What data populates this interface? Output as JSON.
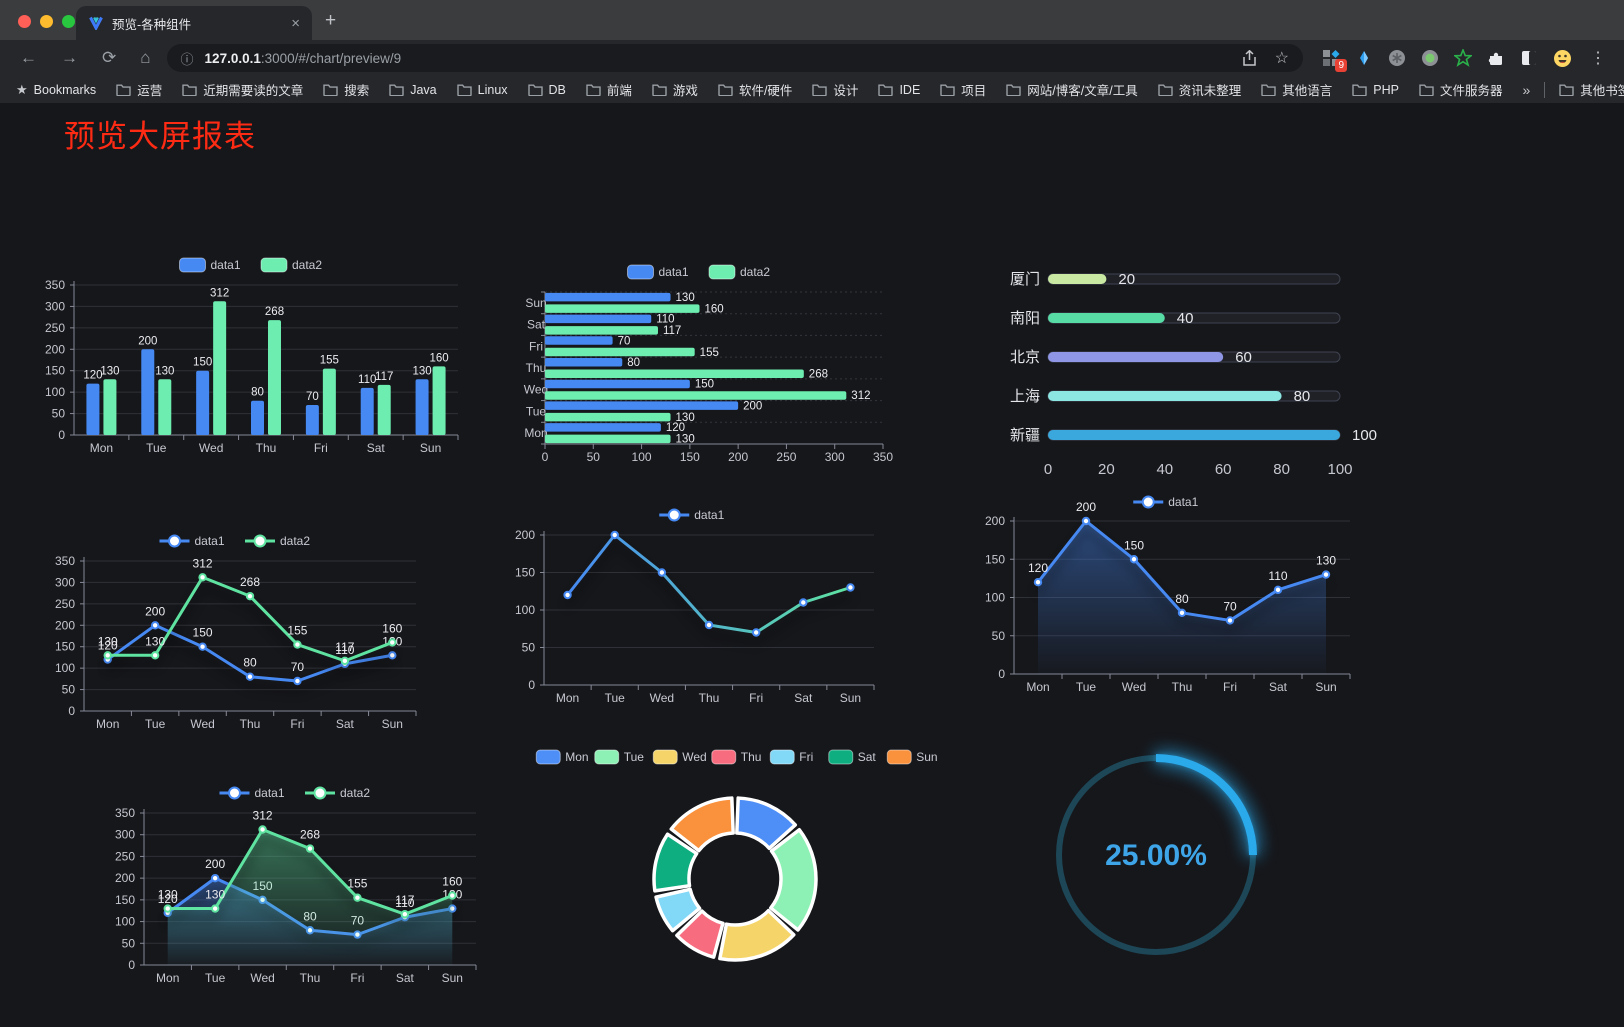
{
  "browser": {
    "tab_title": "预览-各种组件",
    "url_host": "127.0.0.1",
    "url_rest": ":3000/#/chart/preview/9",
    "extension_badge": "9",
    "bookmarks_label": "Bookmarks",
    "bookmarks": [
      "运营",
      "近期需要读的文章",
      "搜索",
      "Java",
      "Linux",
      "DB",
      "前端",
      "游戏",
      "软件/硬件",
      "设计",
      "IDE",
      "项目",
      "网站/博客/文章/工具",
      "资讯未整理",
      "其他语言",
      "PHP",
      "文件服务器"
    ],
    "bookmarks_overflow": "»",
    "other_bookmarks": "其他书签"
  },
  "icons": {
    "back": "←",
    "forward": "→",
    "reload": "⟳",
    "home": "⌂",
    "info": "ⓘ",
    "star": "☆",
    "close": "×",
    "plus": "+",
    "kebab": "⋮",
    "share": "⬆"
  },
  "page": {
    "title": "预览大屏报表"
  },
  "theme": {
    "axis_label": "#c6c8d1",
    "grid": "#2f3138",
    "axis_line": "#868a97",
    "value_label": "#ececf0",
    "legend_text": "#c9cbd4"
  },
  "chart_data": [
    {
      "id": "bar-grouped",
      "type": "bar",
      "categories": [
        "Mon",
        "Tue",
        "Wed",
        "Thu",
        "Fri",
        "Sat",
        "Sun"
      ],
      "series": [
        {
          "name": "data1",
          "color": "#4689f3",
          "values": [
            120,
            200,
            150,
            80,
            70,
            110,
            130
          ]
        },
        {
          "name": "data2",
          "color": "#6dedb0",
          "values": [
            130,
            130,
            312,
            268,
            155,
            117,
            160
          ]
        }
      ],
      "ylim": [
        0,
        350
      ],
      "ystep": 50,
      "legend_position": "top",
      "grid": true
    },
    {
      "id": "bar-horizontal",
      "type": "bar-horizontal",
      "categories": [
        "Mon",
        "Tue",
        "Wed",
        "Thu",
        "Fri",
        "Sat",
        "Sun"
      ],
      "display_order_top_to_bottom": [
        "Sun",
        "Sat",
        "Fri",
        "Thu",
        "Wed",
        "Tue",
        "Mon"
      ],
      "series": [
        {
          "name": "data1",
          "color": "#4689f3",
          "values": [
            120,
            200,
            150,
            80,
            70,
            110,
            130
          ]
        },
        {
          "name": "data2",
          "color": "#6dedb0",
          "values": [
            130,
            130,
            312,
            268,
            155,
            117,
            160
          ]
        }
      ],
      "xlim": [
        0,
        350
      ],
      "xstep": 50,
      "legend_position": "top"
    },
    {
      "id": "city-progress",
      "type": "progress-bars",
      "rows": [
        {
          "label": "厦门",
          "value": 20,
          "color": "#c9e8a2"
        },
        {
          "label": "南阳",
          "value": 40,
          "color": "#57dca6"
        },
        {
          "label": "北京",
          "value": 60,
          "color": "#8e96e5"
        },
        {
          "label": "上海",
          "value": 80,
          "color": "#8ce6e2"
        },
        {
          "label": "新疆",
          "value": 100,
          "color": "#3aa8dd"
        }
      ],
      "xlim": [
        0,
        100
      ],
      "xticks": [
        0,
        20,
        40,
        60,
        80,
        100
      ]
    },
    {
      "id": "line-grouped",
      "type": "line",
      "categories": [
        "Mon",
        "Tue",
        "Wed",
        "Thu",
        "Fri",
        "Sat",
        "Sun"
      ],
      "series": [
        {
          "name": "data1",
          "color": "#4689f3",
          "values": [
            120,
            200,
            150,
            80,
            70,
            110,
            130
          ]
        },
        {
          "name": "data2",
          "color": "#5fe3a1",
          "values": [
            130,
            130,
            312,
            268,
            155,
            117,
            160
          ]
        }
      ],
      "ylim": [
        0,
        350
      ],
      "ystep": 50,
      "show_labels": true,
      "legend_position": "top"
    },
    {
      "id": "line-gradient",
      "type": "line",
      "categories": [
        "Mon",
        "Tue",
        "Wed",
        "Thu",
        "Fri",
        "Sat",
        "Sun"
      ],
      "series": [
        {
          "name": "data1",
          "gradient": [
            "#4689f3",
            "#5fe3a1"
          ],
          "values": [
            120,
            200,
            150,
            80,
            70,
            110,
            130
          ]
        }
      ],
      "ylim": [
        0,
        200
      ],
      "ystep": 50,
      "show_labels": false,
      "legend_position": "top"
    },
    {
      "id": "area-blue",
      "type": "line",
      "categories": [
        "Mon",
        "Tue",
        "Wed",
        "Thu",
        "Fri",
        "Sat",
        "Sun"
      ],
      "series": [
        {
          "name": "data1",
          "color": "#4689f3",
          "values": [
            120,
            200,
            150,
            80,
            70,
            110,
            130
          ],
          "area": true
        }
      ],
      "ylim": [
        0,
        200
      ],
      "ystep": 50,
      "show_labels": true,
      "legend_position": "top"
    },
    {
      "id": "area-grouped",
      "type": "line",
      "categories": [
        "Mon",
        "Tue",
        "Wed",
        "Thu",
        "Fri",
        "Sat",
        "Sun"
      ],
      "series": [
        {
          "name": "data1",
          "color": "#4689f3",
          "values": [
            120,
            200,
            150,
            80,
            70,
            110,
            130
          ],
          "area": true
        },
        {
          "name": "data2",
          "color": "#5fe3a1",
          "values": [
            130,
            130,
            312,
            268,
            155,
            117,
            160
          ],
          "area": true
        }
      ],
      "ylim": [
        0,
        350
      ],
      "ystep": 50,
      "show_labels": true,
      "legend_position": "top"
    },
    {
      "id": "week-donut",
      "type": "pie",
      "donut": true,
      "items": [
        {
          "label": "Mon",
          "value": 120,
          "color": "#4e8ef7"
        },
        {
          "label": "Tue",
          "value": 200,
          "color": "#8df0b4"
        },
        {
          "label": "Wed",
          "value": 150,
          "color": "#f5d569"
        },
        {
          "label": "Thu",
          "value": 80,
          "color": "#f76c7f"
        },
        {
          "label": "Fri",
          "value": 70,
          "color": "#82d8f7"
        },
        {
          "label": "Sat",
          "value": 110,
          "color": "#0fae80"
        },
        {
          "label": "Sun",
          "value": 130,
          "color": "#f9913d"
        }
      ],
      "legend_position": "top"
    },
    {
      "id": "gauge",
      "type": "gauge",
      "value": 25,
      "display": "25.00%",
      "color": "#2aa9eb",
      "track_color": "#1d4757",
      "text_color": "#3ea6e8"
    }
  ]
}
